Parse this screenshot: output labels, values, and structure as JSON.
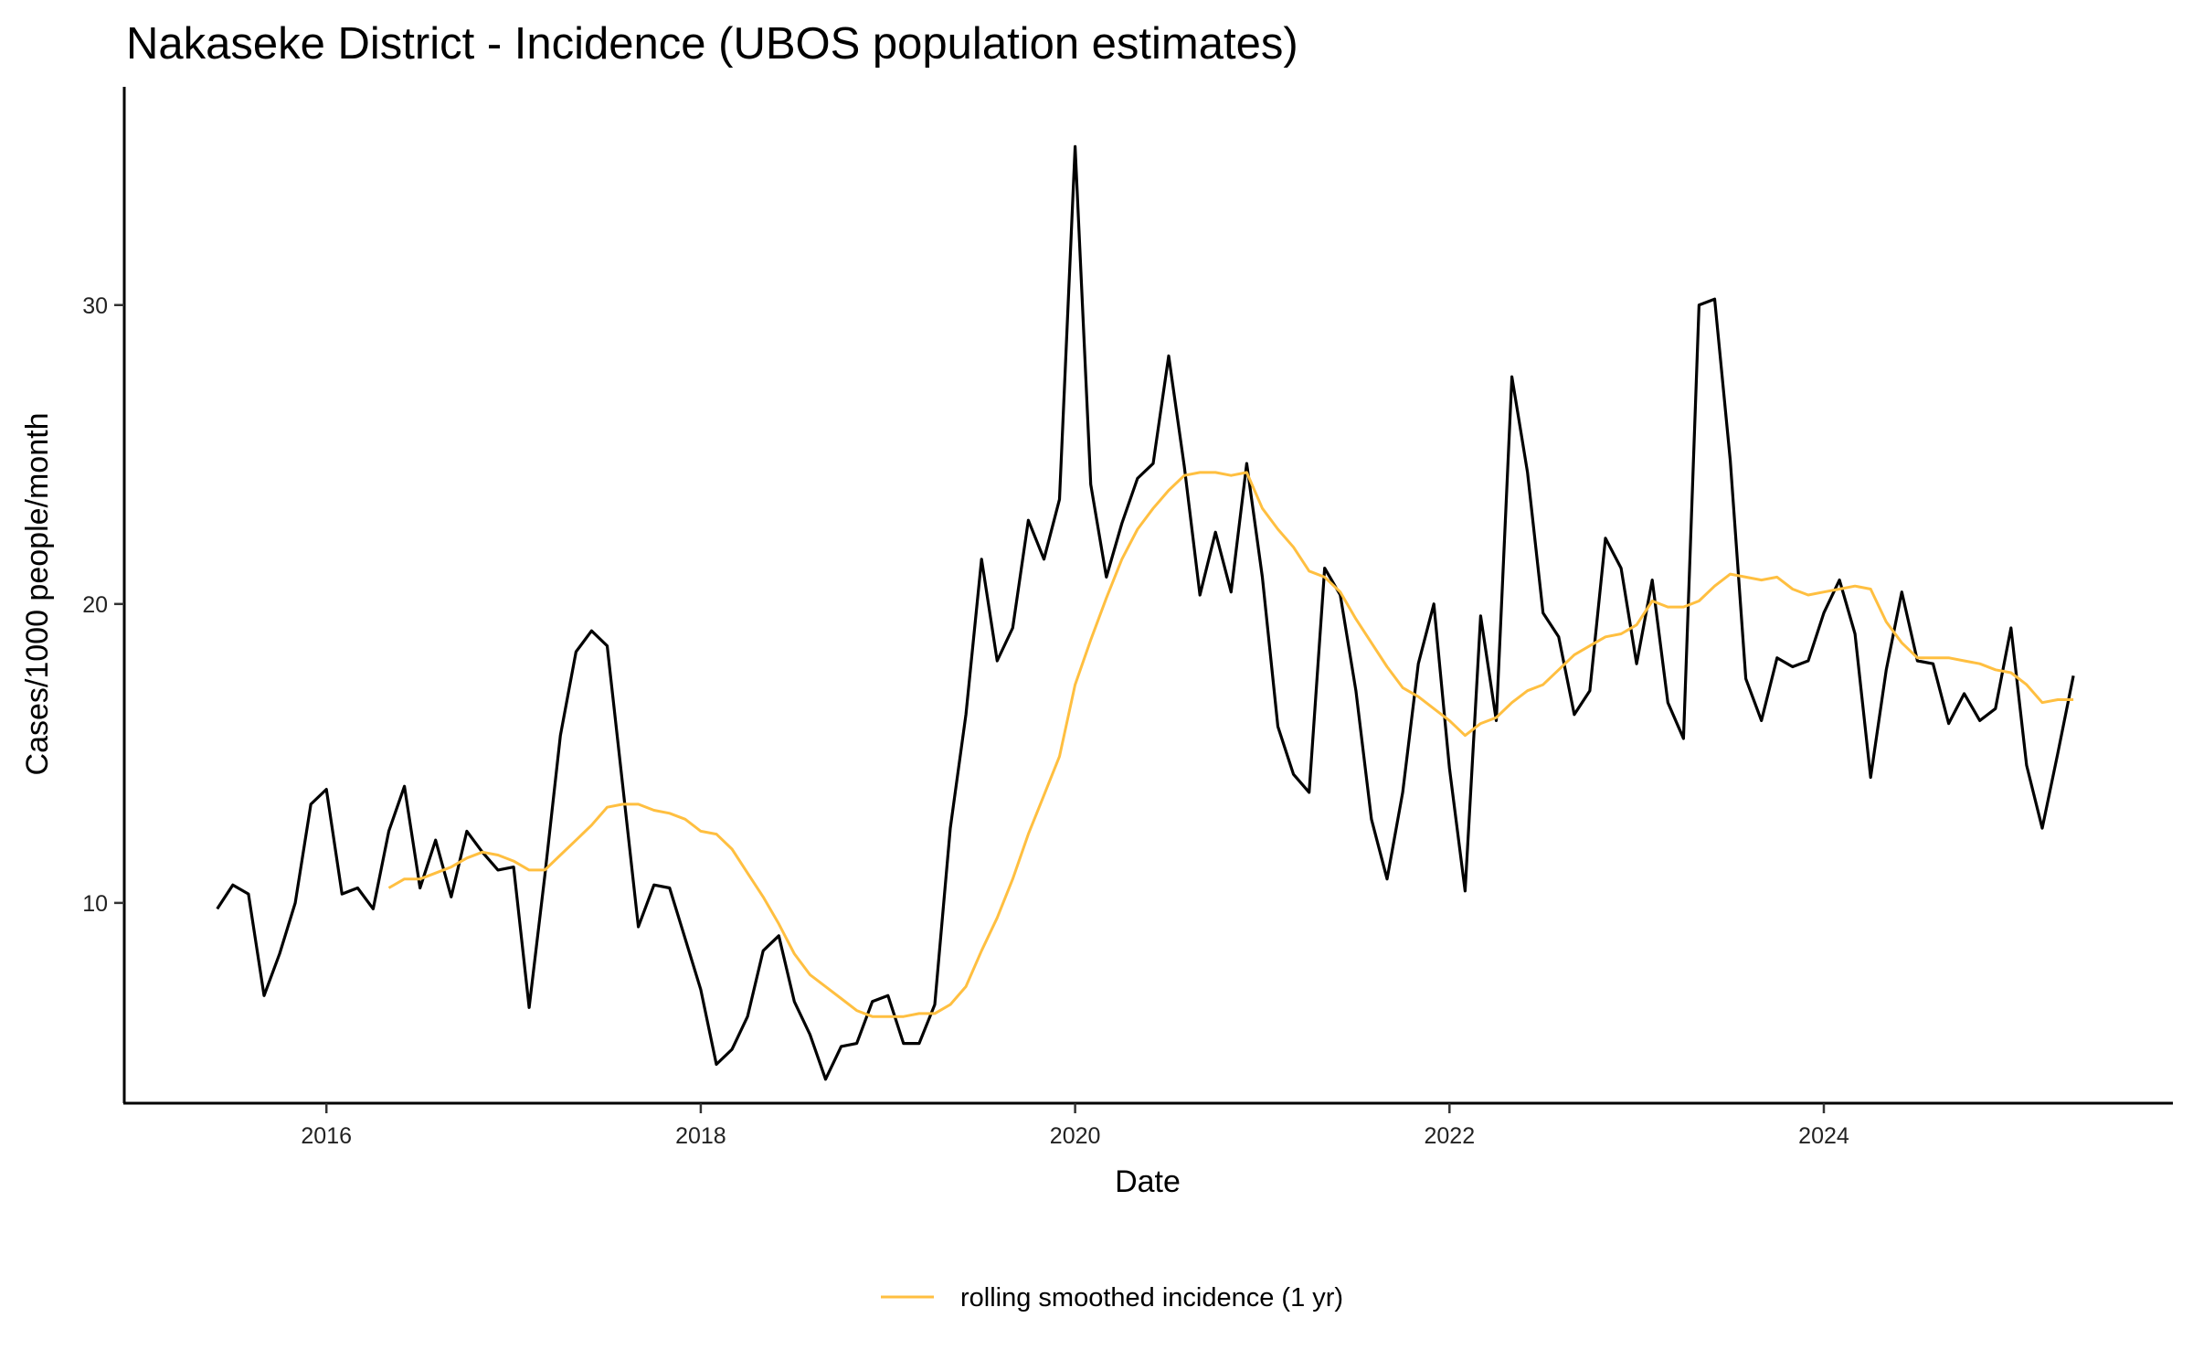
{
  "chart_data": {
    "type": "line",
    "title": "Nakaseke District - Incidence (UBOS population estimates)",
    "xlabel": "Date",
    "ylabel": "Cases/1000 people/month",
    "xlim": [
      2014.92,
      2025.86
    ],
    "ylim": [
      3.3,
      37.3
    ],
    "x_ticks": [
      "2016",
      "2018",
      "2020",
      "2022",
      "2024"
    ],
    "y_ticks": [
      "10",
      "20",
      "30"
    ],
    "grid": false,
    "legend_position": "bottom",
    "colors": {
      "incidence": "#000000",
      "rolling": "#FFBF40"
    },
    "series": [
      {
        "name": "incidence",
        "start": "2015-06",
        "frequency": "monthly",
        "values": [
          9.8,
          10.6,
          10.3,
          6.9,
          8.3,
          10.0,
          13.3,
          13.8,
          10.3,
          10.5,
          9.8,
          12.4,
          13.9,
          10.5,
          12.1,
          10.2,
          12.4,
          11.7,
          11.1,
          11.2,
          6.5,
          10.9,
          15.6,
          18.4,
          19.1,
          18.6,
          13.9,
          9.2,
          10.6,
          10.5,
          8.8,
          7.1,
          4.6,
          5.1,
          6.2,
          8.4,
          8.9,
          6.7,
          5.6,
          4.1,
          5.2,
          5.3,
          6.7,
          6.9,
          5.3,
          5.3,
          6.6,
          12.5,
          16.3,
          21.5,
          18.1,
          19.2,
          22.8,
          21.5,
          23.5,
          35.3,
          24.0,
          20.9,
          22.7,
          24.2,
          24.7,
          28.3,
          24.6,
          20.3,
          22.4,
          20.4,
          24.7,
          20.9,
          15.9,
          14.3,
          13.7,
          21.2,
          20.3,
          17.1,
          12.8,
          10.8,
          13.7,
          18.0,
          20.0,
          14.5,
          10.4,
          19.6,
          16.1,
          27.6,
          24.4,
          19.7,
          18.9,
          16.3,
          17.1,
          22.2,
          21.2,
          18.0,
          20.8,
          16.7,
          15.5,
          30.0,
          30.2,
          24.8,
          17.5,
          16.1,
          18.2,
          17.9,
          18.1,
          19.7,
          20.8,
          19.0,
          14.2,
          17.8,
          20.4,
          18.1,
          18.0,
          16.0,
          17.0,
          16.1,
          16.5,
          19.2,
          14.6,
          12.5,
          15.0,
          17.6
        ]
      },
      {
        "name": "rolling smoothed incidence (1 yr)",
        "start": "2016-05",
        "frequency": "monthly",
        "values": [
          10.5,
          10.8,
          10.8,
          11.0,
          11.2,
          11.5,
          11.7,
          11.6,
          11.4,
          11.1,
          11.1,
          11.6,
          12.1,
          12.6,
          13.2,
          13.3,
          13.3,
          13.1,
          13.0,
          12.8,
          12.4,
          12.3,
          11.8,
          11.0,
          10.2,
          9.3,
          8.3,
          7.6,
          7.2,
          6.8,
          6.4,
          6.2,
          6.2,
          6.2,
          6.3,
          6.3,
          6.6,
          7.2,
          8.4,
          9.5,
          10.8,
          12.3,
          13.6,
          14.9,
          17.3,
          18.8,
          20.2,
          21.5,
          22.5,
          23.2,
          23.8,
          24.3,
          24.4,
          24.4,
          24.3,
          24.4,
          23.2,
          22.5,
          21.9,
          21.1,
          20.9,
          20.4,
          19.5,
          18.7,
          17.9,
          17.2,
          16.9,
          16.5,
          16.1,
          15.6,
          16.0,
          16.2,
          16.7,
          17.1,
          17.3,
          17.8,
          18.3,
          18.6,
          18.9,
          19.0,
          19.3,
          20.1,
          19.9,
          19.9,
          20.1,
          20.6,
          21.0,
          20.9,
          20.8,
          20.9,
          20.5,
          20.3,
          20.4,
          20.5,
          20.6,
          20.5,
          19.4,
          18.7,
          18.2,
          18.2,
          18.2,
          18.1,
          18.0,
          17.8,
          17.7,
          17.3,
          16.7,
          16.8,
          16.8
        ]
      }
    ],
    "legend": [
      "rolling smoothed incidence (1 yr)"
    ]
  }
}
